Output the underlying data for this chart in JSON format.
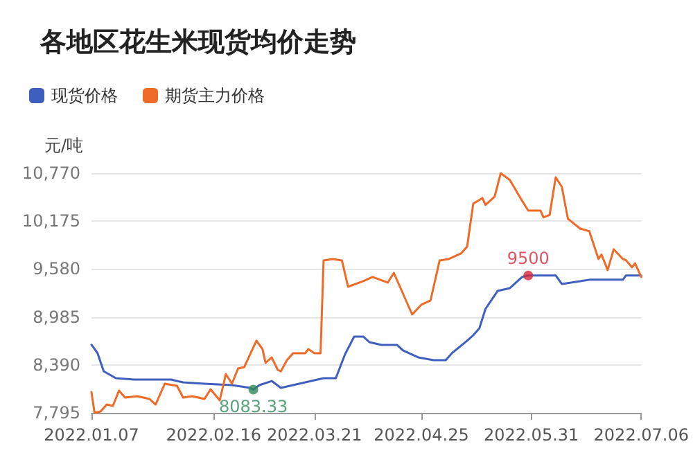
{
  "chart_data": {
    "type": "line",
    "title": "各地区花生米现货均价走势",
    "ylabel": "元/吨",
    "legend": "top left",
    "grid": "y",
    "marker": "none",
    "line_style": "solid",
    "xlim": [
      "2022-01-07",
      "2022-07-06"
    ],
    "xticks": [
      {
        "value": "2022-01-07",
        "label": "2022.01.07"
      },
      {
        "value": "2022-02-16",
        "label": "2022.02.16"
      },
      {
        "value": "2022-03-21",
        "label": "2022.03.21"
      },
      {
        "value": "2022-04-25",
        "label": "2022.04.25"
      },
      {
        "value": "2022-05-31",
        "label": "2022.05.31"
      },
      {
        "value": "2022-07-06",
        "label": "2022.07.06"
      }
    ],
    "ylim": [
      7795,
      10770
    ],
    "yticks": [
      {
        "value": 7795,
        "label": "7,795"
      },
      {
        "value": 8390,
        "label": "8,390"
      },
      {
        "value": 8985,
        "label": "8,985"
      },
      {
        "value": 9580,
        "label": "9,580"
      },
      {
        "value": 10175,
        "label": "10,175"
      },
      {
        "value": 10770,
        "label": "10,770"
      }
    ],
    "annotations": [
      {
        "text": "8083.33",
        "x": "2022-03-01",
        "y": 8083.33
      },
      {
        "text": "9500",
        "x": "2022-05-30",
        "y": 9500
      }
    ],
    "series": [
      {
        "name": "现货价格",
        "color": "#3f5fbf",
        "x": [
          "2022-01-07",
          "2022-01-09",
          "2022-01-11",
          "2022-01-15",
          "2022-01-21",
          "2022-02-02",
          "2022-02-06",
          "2022-02-13",
          "2022-02-22",
          "2022-02-28",
          "2022-03-01",
          "2022-03-03",
          "2022-03-07",
          "2022-03-10",
          "2022-03-18",
          "2022-03-24",
          "2022-03-28",
          "2022-03-31",
          "2022-04-03",
          "2022-04-06",
          "2022-04-08",
          "2022-04-12",
          "2022-04-17",
          "2022-04-19",
          "2022-04-24",
          "2022-04-29",
          "2022-05-03",
          "2022-05-05",
          "2022-05-10",
          "2022-05-12",
          "2022-05-14",
          "2022-05-16",
          "2022-05-20",
          "2022-05-24",
          "2022-05-28",
          "2022-05-30",
          "2022-06-06",
          "2022-06-08",
          "2022-06-10",
          "2022-06-16",
          "2022-06-19",
          "2022-06-30",
          "2022-07-01",
          "2022-07-06"
        ],
        "values": [
          8640,
          8535,
          8311,
          8225,
          8208,
          8208,
          8173,
          8156,
          8139,
          8105,
          8083.33,
          8139,
          8190,
          8105,
          8173,
          8225,
          8225,
          8520,
          8741,
          8741,
          8672,
          8638,
          8638,
          8569,
          8483,
          8449,
          8449,
          8535,
          8690,
          8758,
          8844,
          9085,
          9309,
          9343,
          9481,
          9500,
          9500,
          9500,
          9395,
          9429,
          9447,
          9447,
          9500,
          9500
        ]
      },
      {
        "name": "期货主力价格",
        "color": "#f06a27",
        "x": [
          "2022-01-07",
          "2022-01-08",
          "2022-01-10",
          "2022-01-12",
          "2022-01-14",
          "2022-01-16",
          "2022-01-18",
          "2022-01-22",
          "2022-01-26",
          "2022-01-28",
          "2022-01-31",
          "2022-02-04",
          "2022-02-06",
          "2022-02-09",
          "2022-02-13",
          "2022-02-15",
          "2022-02-18",
          "2022-02-20",
          "2022-02-22",
          "2022-02-24",
          "2022-02-26",
          "2022-03-02",
          "2022-03-04",
          "2022-03-05",
          "2022-03-07",
          "2022-03-09",
          "2022-03-10",
          "2022-03-12",
          "2022-03-14",
          "2022-03-18",
          "2022-03-19",
          "2022-03-21",
          "2022-03-23",
          "2022-03-24",
          "2022-03-27",
          "2022-03-30",
          "2022-04-01",
          "2022-04-06",
          "2022-04-09",
          "2022-04-14",
          "2022-04-16",
          "2022-04-19",
          "2022-04-22",
          "2022-04-25",
          "2022-04-28",
          "2022-05-01",
          "2022-05-04",
          "2022-05-08",
          "2022-05-10",
          "2022-05-12",
          "2022-05-15",
          "2022-05-16",
          "2022-05-19",
          "2022-05-21",
          "2022-05-24",
          "2022-05-28",
          "2022-05-30",
          "2022-06-03",
          "2022-06-04",
          "2022-06-06",
          "2022-06-08",
          "2022-06-10",
          "2022-06-12",
          "2022-06-16",
          "2022-06-19",
          "2022-06-22",
          "2022-06-23",
          "2022-06-25",
          "2022-06-27",
          "2022-06-30",
          "2022-07-01",
          "2022-07-03",
          "2022-07-04",
          "2022-07-06"
        ],
        "values": [
          8053,
          7795,
          7812,
          7898,
          7881,
          8070,
          7984,
          8001,
          7967,
          7898,
          8156,
          8130,
          7984,
          8001,
          7967,
          8087,
          7950,
          8276,
          8156,
          8345,
          8362,
          8690,
          8586,
          8414,
          8483,
          8328,
          8310,
          8449,
          8535,
          8535,
          8586,
          8535,
          8535,
          9687,
          9704,
          9687,
          9360,
          9429,
          9481,
          9412,
          9532,
          9274,
          9016,
          9137,
          9188,
          9687,
          9704,
          9773,
          9859,
          10392,
          10461,
          10375,
          10478,
          10770,
          10684,
          10427,
          10306,
          10306,
          10220,
          10250,
          10719,
          10600,
          10203,
          10082,
          10050,
          9704,
          9760,
          9567,
          9825,
          9704,
          9690,
          9601,
          9650,
          9481
        ]
      }
    ]
  }
}
